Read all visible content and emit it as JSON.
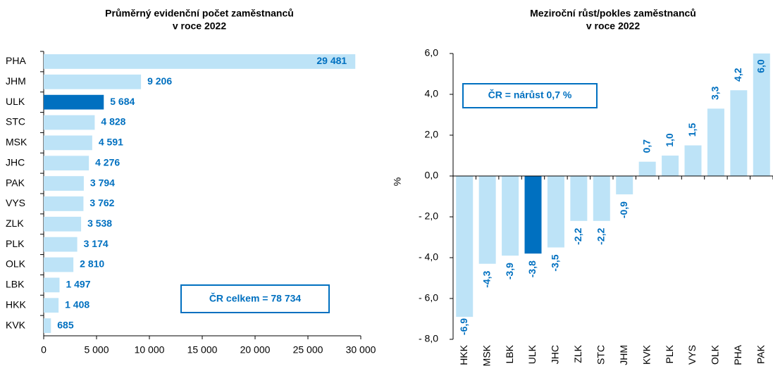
{
  "chart_data": [
    {
      "type": "hbar",
      "title": [
        "Průměrný evidenční počet zaměstnanců",
        "v roce 2022"
      ],
      "categories": [
        "PHA",
        "JHM",
        "ULK",
        "STC",
        "MSK",
        "JHC",
        "PAK",
        "VYS",
        "ZLK",
        "PLK",
        "OLK",
        "LBK",
        "HKK",
        "KVK"
      ],
      "values": [
        29481,
        9206,
        5684,
        4828,
        4591,
        4276,
        3794,
        3762,
        3538,
        3174,
        2810,
        1497,
        1408,
        685
      ],
      "value_labels": [
        "29 481",
        "9 206",
        "5 684",
        "4 828",
        "4 591",
        "4 276",
        "3 794",
        "3 762",
        "3 538",
        "3 174",
        "2 810",
        "1 497",
        "1 408",
        "685"
      ],
      "colors": [
        "#bde3f7",
        "#bde3f7",
        "#0070c0",
        "#bde3f7",
        "#bde3f7",
        "#bde3f7",
        "#bde3f7",
        "#bde3f7",
        "#bde3f7",
        "#bde3f7",
        "#bde3f7",
        "#bde3f7",
        "#bde3f7",
        "#bde3f7"
      ],
      "xlim": [
        0,
        30000
      ],
      "xticks": [
        0,
        {
          "value": 5000,
          "label": "5 000"
        },
        {
          "value": 10000,
          "label": "10 000"
        },
        {
          "value": 15000,
          "label": "15 000"
        },
        {
          "value": 20000,
          "label": "20 000"
        },
        {
          "value": 25000,
          "label": "25 000"
        },
        {
          "value": 30000,
          "label": "30 000"
        }
      ],
      "annotation": "ČR celkem = 78 734"
    },
    {
      "type": "bar",
      "title": [
        "Meziroční růst/pokles zaměstnanců",
        "v roce 2022"
      ],
      "y_label": "%",
      "categories": [
        "HKK",
        "MSK",
        "LBK",
        "ULK",
        "JHC",
        "ZLK",
        "STC",
        "JHM",
        "KVK",
        "PLK",
        "VYS",
        "OLK",
        "PHA",
        "PAK"
      ],
      "values": [
        -6.9,
        -4.3,
        -3.9,
        -3.8,
        -3.5,
        -2.2,
        -2.2,
        -0.9,
        0.7,
        1.0,
        1.5,
        3.3,
        4.2,
        6.0
      ],
      "value_labels": [
        "-6,9",
        "-4,3",
        "-3,9",
        "-3,8",
        "-3,5",
        "-2,2",
        "-2,2",
        "-0,9",
        "0,7",
        "1,0",
        "1,5",
        "3,3",
        "4,2",
        "6,0"
      ],
      "colors": [
        "#bde3f7",
        "#bde3f7",
        "#bde3f7",
        "#0070c0",
        "#bde3f7",
        "#bde3f7",
        "#bde3f7",
        "#bde3f7",
        "#bde3f7",
        "#bde3f7",
        "#bde3f7",
        "#bde3f7",
        "#bde3f7",
        "#bde3f7"
      ],
      "ylim": [
        -8,
        6
      ],
      "yticks": [
        {
          "value": 6,
          "label": "6,0"
        },
        {
          "value": 4,
          "label": "4,0"
        },
        {
          "value": 2,
          "label": "2,0"
        },
        {
          "value": 0,
          "label": "0,0"
        },
        {
          "value": -2,
          "label": "- 2,0"
        },
        {
          "value": -4,
          "label": "- 4,0"
        },
        {
          "value": -6,
          "label": "- 6,0"
        },
        {
          "value": -8,
          "label": "- 8,0"
        }
      ],
      "annotation": "ČR = nárůst 0,7 %"
    }
  ]
}
